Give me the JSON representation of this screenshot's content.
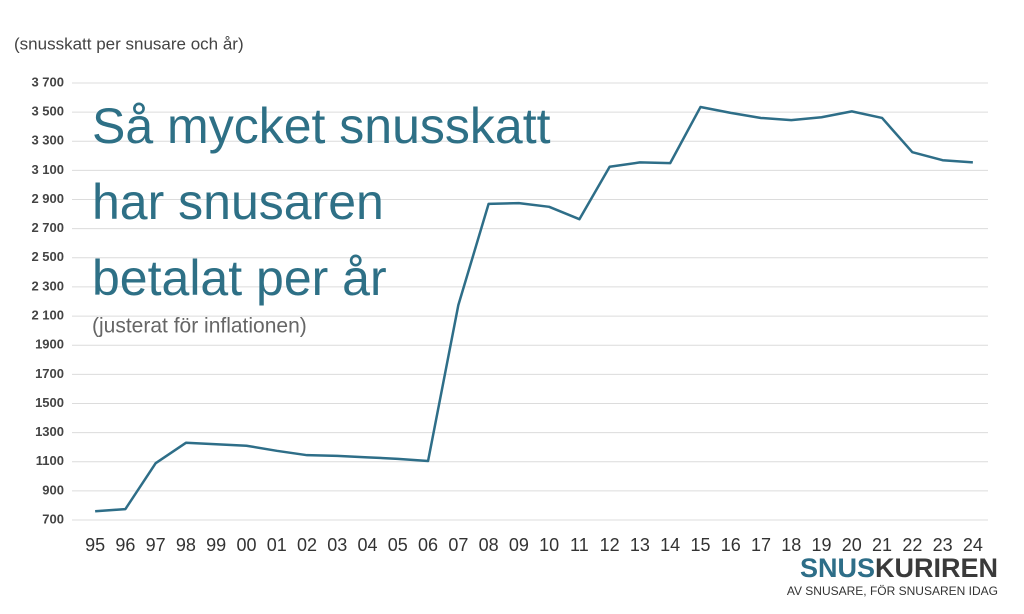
{
  "chart_data": {
    "type": "line",
    "title": [
      "Så mycket snusskatt",
      "har snusaren",
      "betalat per år"
    ],
    "subtitle": "(justerat för inflationen)",
    "y_label": "(snusskatt per snusare och år)",
    "categories": [
      "95",
      "96",
      "97",
      "98",
      "99",
      "00",
      "01",
      "02",
      "03",
      "04",
      "05",
      "06",
      "07",
      "08",
      "09",
      "10",
      "11",
      "12",
      "13",
      "14",
      "15",
      "16",
      "17",
      "18",
      "19",
      "20",
      "21",
      "22",
      "23",
      "24"
    ],
    "series": [
      {
        "color": "#2e6e88",
        "values": [
          760,
          775,
          1090,
          1230,
          1220,
          1210,
          1175,
          1145,
          1140,
          1130,
          1120,
          1105,
          2175,
          2870,
          2875,
          2850,
          2765,
          3125,
          3155,
          3150,
          3535,
          3495,
          3460,
          3445,
          3465,
          3505,
          3460,
          3225,
          3170,
          3155
        ]
      }
    ],
    "ylim": [
      700,
      3700
    ],
    "yticks": [
      700,
      900,
      1100,
      1300,
      1500,
      1700,
      1900,
      {
        "value": 2100,
        "label": "2 100"
      },
      {
        "value": 2300,
        "label": "2 300"
      },
      {
        "value": 2500,
        "label": "2 500"
      },
      {
        "value": 2700,
        "label": "2 700"
      },
      {
        "value": 2900,
        "label": "2 900"
      },
      {
        "value": 3100,
        "label": "3 100"
      },
      {
        "value": 3300,
        "label": "3 300"
      },
      {
        "value": 3500,
        "label": "3 500"
      },
      {
        "value": 3700,
        "label": "3 700"
      }
    ],
    "grid": true
  },
  "logo": {
    "parts": [
      "SNUS",
      "KURIREN"
    ],
    "tagline": "AV SNUSARE, FÖR SNUSAREN IDAG"
  }
}
